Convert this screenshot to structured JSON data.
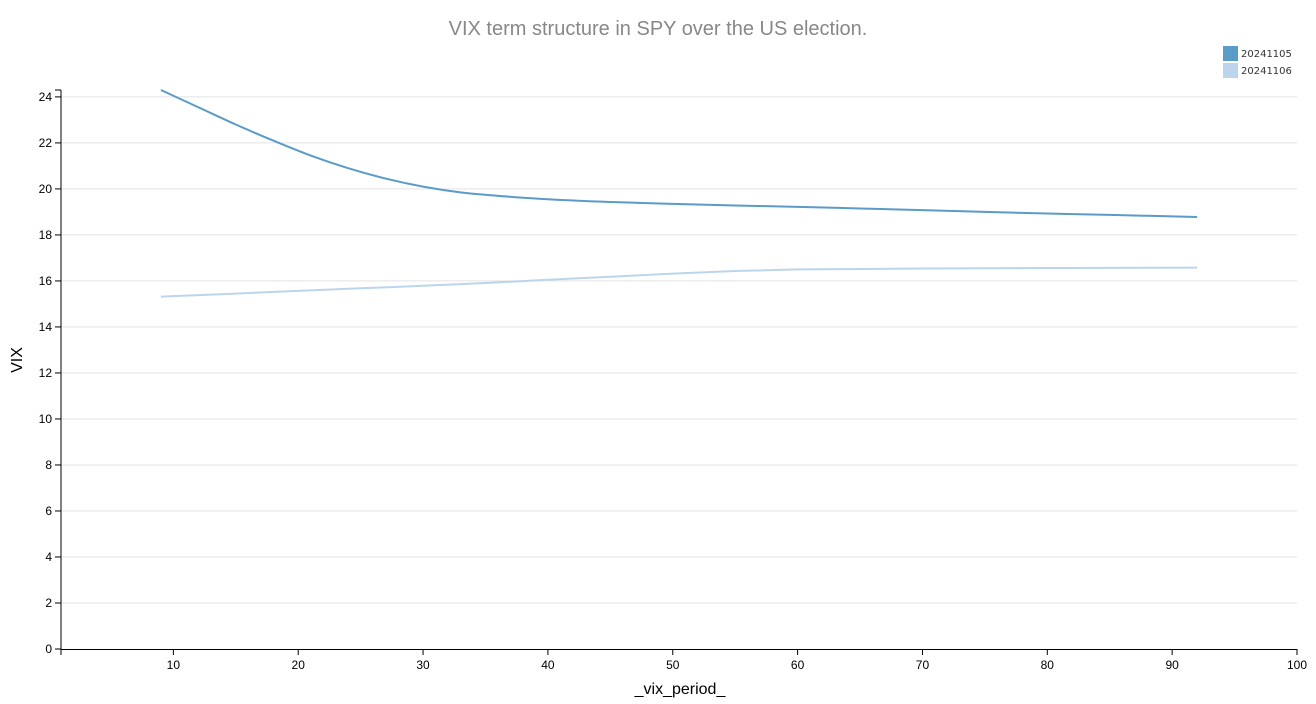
{
  "chart_data": {
    "type": "line",
    "title": "VIX term structure in SPY over the US election.",
    "xlabel": "_vix_period_",
    "ylabel": "VIX",
    "xlim": [
      1,
      100
    ],
    "ylim": [
      0,
      24.3
    ],
    "xticks": [
      10,
      20,
      30,
      40,
      50,
      60,
      70,
      80,
      90,
      100
    ],
    "yticks": [
      0,
      2,
      4,
      6,
      8,
      10,
      12,
      14,
      16,
      18,
      20,
      22,
      24
    ],
    "grid": "horizontal",
    "legend_position": "top-right",
    "series": [
      {
        "name": "20241105",
        "color": "#5b9bc8",
        "x": [
          9,
          12,
          15,
          18,
          21,
          24,
          27,
          30,
          33,
          36,
          40,
          45,
          50,
          55,
          60,
          65,
          70,
          75,
          80,
          85,
          92
        ],
        "y": [
          24.3,
          23.55,
          22.8,
          22.1,
          21.45,
          20.9,
          20.45,
          20.1,
          19.85,
          19.7,
          19.55,
          19.43,
          19.35,
          19.28,
          19.22,
          19.15,
          19.08,
          19.0,
          18.93,
          18.87,
          18.78
        ]
      },
      {
        "name": "20241106",
        "color": "#bdd5ec",
        "x": [
          9,
          15,
          20,
          25,
          30,
          35,
          40,
          45,
          50,
          55,
          60,
          65,
          70,
          75,
          80,
          85,
          92
        ],
        "y": [
          15.32,
          15.45,
          15.57,
          15.68,
          15.79,
          15.91,
          16.05,
          16.18,
          16.32,
          16.43,
          16.5,
          16.52,
          16.54,
          16.55,
          16.56,
          16.57,
          16.58
        ]
      }
    ]
  }
}
